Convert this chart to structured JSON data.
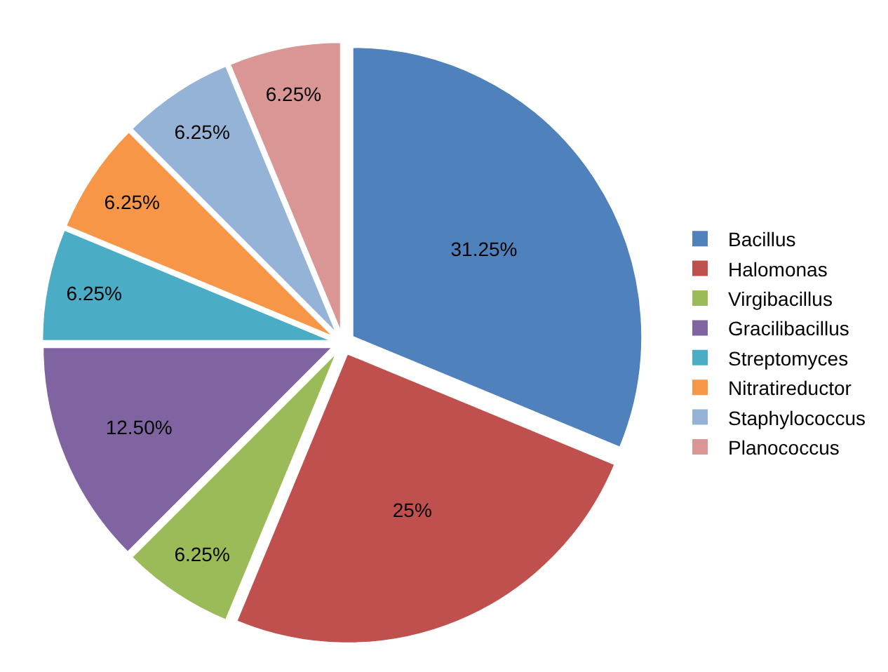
{
  "chart_data": {
    "type": "pie",
    "categories": [
      "Bacillus",
      "Halomonas",
      "Virgibacillus",
      "Gracilibacillus",
      "Streptomyces",
      "Nitratireductor",
      "Staphylococcus",
      "Planococcus"
    ],
    "values": [
      31.25,
      25,
      6.25,
      12.5,
      6.25,
      6.25,
      6.25,
      6.25
    ],
    "value_labels": [
      "31.25%",
      "25%",
      "6.25%",
      "12.50%",
      "6.25%",
      "6.25%",
      "6.25%",
      "6.25%"
    ],
    "colors": [
      "#4f81bd",
      "#c0504d",
      "#9bbb59",
      "#8064a2",
      "#4bacc6",
      "#f79646",
      "#95b3d7",
      "#d99694"
    ],
    "legend": "right"
  }
}
